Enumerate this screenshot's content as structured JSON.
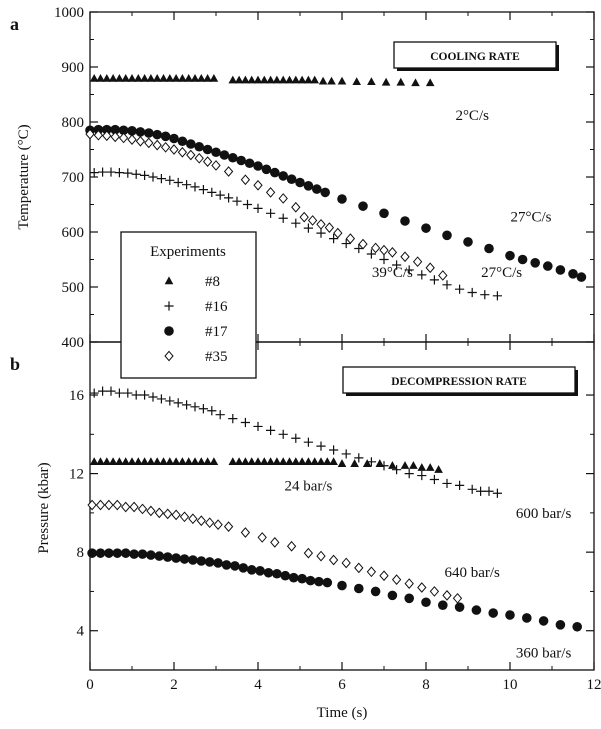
{
  "panels": {
    "a": {
      "letter": "a",
      "box_title": "COOLING RATE"
    },
    "b": {
      "letter": "b",
      "box_title": "DECOMPRESSION RATE"
    }
  },
  "legend": {
    "title": "Experiments",
    "entries": [
      {
        "label": "#8",
        "marker": "triangle"
      },
      {
        "label": "#16",
        "marker": "plus"
      },
      {
        "label": "#17",
        "marker": "filled-circle"
      },
      {
        "label": "#35",
        "marker": "open-diamond"
      }
    ]
  },
  "chart_data": [
    {
      "type": "scatter",
      "panel": "a",
      "title": "",
      "xlabel": "Time (s)",
      "ylabel": "Temperature (°C)",
      "xlim": [
        0,
        12
      ],
      "ylim": [
        400,
        1000
      ],
      "xticks": [
        0,
        2,
        4,
        6,
        8,
        10,
        12
      ],
      "yticks": [
        400,
        500,
        600,
        700,
        800,
        900,
        1000
      ],
      "legend_position": "left-center",
      "annotations": [
        {
          "text": "2°C/s",
          "x": 9.1,
          "y": 813
        },
        {
          "text": "27°C/s",
          "x": 10.5,
          "y": 628
        },
        {
          "text": "39°C/s",
          "x": 7.2,
          "y": 527
        },
        {
          "text": "27°C/s",
          "x": 9.8,
          "y": 527
        }
      ],
      "series": [
        {
          "name": "#8",
          "marker": "triangle",
          "x": [
            0.1,
            0.25,
            0.4,
            0.55,
            0.7,
            0.85,
            1.0,
            1.15,
            1.3,
            1.45,
            1.6,
            1.75,
            1.9,
            2.05,
            2.2,
            2.35,
            2.5,
            2.65,
            2.8,
            2.95,
            3.4,
            3.55,
            3.7,
            3.85,
            4.0,
            4.15,
            4.3,
            4.45,
            4.6,
            4.75,
            4.9,
            5.05,
            5.2,
            5.35,
            5.55,
            5.75,
            6.0,
            6.35,
            6.7,
            7.05,
            7.4,
            7.75,
            8.1
          ],
          "y": [
            879,
            879,
            879,
            879,
            879,
            879,
            879,
            879,
            879,
            879,
            879,
            879,
            879,
            879,
            879,
            879,
            879,
            879,
            879,
            879,
            876,
            876,
            876,
            876,
            876,
            876,
            876,
            876,
            876,
            876,
            876,
            876,
            876,
            876,
            874,
            874,
            874,
            873,
            873,
            872,
            872,
            871,
            871
          ]
        },
        {
          "name": "#16",
          "marker": "plus",
          "x": [
            0.1,
            0.3,
            0.5,
            0.7,
            0.9,
            1.1,
            1.3,
            1.5,
            1.7,
            1.9,
            2.1,
            2.3,
            2.5,
            2.7,
            2.9,
            3.1,
            3.3,
            3.5,
            3.75,
            4.0,
            4.3,
            4.6,
            4.9,
            5.2,
            5.5,
            5.8,
            6.1,
            6.4,
            6.7,
            7.0,
            7.3,
            7.6,
            7.9,
            8.2,
            8.5,
            8.8,
            9.1,
            9.4,
            9.7
          ],
          "y": [
            708,
            709,
            709,
            708,
            707,
            705,
            703,
            700,
            697,
            694,
            690,
            686,
            682,
            677,
            672,
            667,
            662,
            656,
            650,
            643,
            634,
            625,
            616,
            607,
            598,
            588,
            579,
            570,
            560,
            550,
            540,
            531,
            522,
            513,
            504,
            496,
            490,
            486,
            484
          ]
        },
        {
          "name": "#17",
          "marker": "filled-circle",
          "x": [
            0.0,
            0.2,
            0.4,
            0.6,
            0.8,
            1.0,
            1.2,
            1.4,
            1.6,
            1.8,
            2.0,
            2.2,
            2.4,
            2.6,
            2.8,
            3.0,
            3.2,
            3.4,
            3.6,
            3.8,
            4.0,
            4.2,
            4.4,
            4.6,
            4.8,
            5.0,
            5.2,
            5.4,
            5.6,
            6.0,
            6.5,
            7.0,
            7.5,
            8.0,
            8.5,
            9.0,
            9.5,
            10.0,
            10.3,
            10.6,
            10.9,
            11.2,
            11.5,
            11.7
          ],
          "y": [
            785,
            786,
            786,
            786,
            785,
            784,
            782,
            780,
            777,
            774,
            770,
            765,
            760,
            755,
            750,
            745,
            740,
            735,
            730,
            725,
            720,
            714,
            708,
            702,
            696,
            690,
            684,
            678,
            672,
            660,
            647,
            634,
            620,
            607,
            594,
            582,
            570,
            557,
            550,
            544,
            538,
            531,
            524,
            518
          ]
        },
        {
          "name": "#35",
          "marker": "open-diamond",
          "x": [
            0.0,
            0.2,
            0.4,
            0.6,
            0.8,
            1.0,
            1.2,
            1.4,
            1.6,
            1.8,
            2.0,
            2.2,
            2.4,
            2.6,
            2.8,
            3.0,
            3.3,
            3.7,
            4.0,
            4.3,
            4.6,
            4.9,
            5.1,
            5.3,
            5.5,
            5.7,
            5.9,
            6.2,
            6.5,
            6.8,
            7.0,
            7.2,
            7.5,
            7.8,
            8.1,
            8.4
          ],
          "y": [
            778,
            776,
            775,
            773,
            771,
            768,
            765,
            762,
            758,
            754,
            750,
            745,
            740,
            734,
            728,
            721,
            710,
            695,
            685,
            672,
            661,
            645,
            627,
            621,
            614,
            608,
            598,
            588,
            578,
            571,
            567,
            563,
            555,
            546,
            535,
            521
          ]
        }
      ]
    },
    {
      "type": "scatter",
      "panel": "b",
      "title": "",
      "xlabel": "Time (s)",
      "ylabel": "Pressure (kbar)",
      "xlim": [
        0,
        12
      ],
      "ylim": [
        2,
        18.7
      ],
      "xticks": [
        0,
        2,
        4,
        6,
        8,
        10,
        12
      ],
      "yticks": [
        4,
        8,
        12,
        16
      ],
      "annotations": [
        {
          "text": "24 bar/s",
          "x": 5.2,
          "y": 11.4
        },
        {
          "text": "600 bar/s",
          "x": 10.8,
          "y": 10.0
        },
        {
          "text": "640 bar/s",
          "x": 9.1,
          "y": 7.0
        },
        {
          "text": "360 bar/s",
          "x": 10.8,
          "y": 2.9
        }
      ],
      "series": [
        {
          "name": "#8",
          "marker": "triangle",
          "x": [
            0.1,
            0.25,
            0.4,
            0.55,
            0.7,
            0.85,
            1.0,
            1.15,
            1.3,
            1.45,
            1.6,
            1.75,
            1.9,
            2.05,
            2.2,
            2.35,
            2.5,
            2.65,
            2.8,
            2.95,
            3.4,
            3.55,
            3.7,
            3.85,
            4.0,
            4.15,
            4.3,
            4.45,
            4.6,
            4.75,
            4.9,
            5.05,
            5.2,
            5.35,
            5.5,
            5.65,
            5.8,
            6.0,
            6.3,
            6.6,
            6.9,
            7.2,
            7.5,
            7.7,
            7.9,
            8.1,
            8.3
          ],
          "y": [
            12.6,
            12.6,
            12.6,
            12.6,
            12.6,
            12.6,
            12.6,
            12.6,
            12.6,
            12.6,
            12.6,
            12.6,
            12.6,
            12.6,
            12.6,
            12.6,
            12.6,
            12.6,
            12.6,
            12.6,
            12.6,
            12.6,
            12.6,
            12.6,
            12.6,
            12.6,
            12.6,
            12.6,
            12.6,
            12.6,
            12.6,
            12.6,
            12.6,
            12.6,
            12.6,
            12.6,
            12.6,
            12.5,
            12.5,
            12.5,
            12.5,
            12.4,
            12.4,
            12.4,
            12.3,
            12.3,
            12.2
          ]
        },
        {
          "name": "#16",
          "marker": "plus",
          "x": [
            0.1,
            0.3,
            0.5,
            0.7,
            0.9,
            1.1,
            1.3,
            1.5,
            1.7,
            1.9,
            2.1,
            2.3,
            2.5,
            2.7,
            2.9,
            3.1,
            3.4,
            3.7,
            4.0,
            4.3,
            4.6,
            4.9,
            5.2,
            5.5,
            5.8,
            6.1,
            6.4,
            6.7,
            7.0,
            7.3,
            7.6,
            7.9,
            8.2,
            8.5,
            8.8,
            9.1,
            9.3,
            9.5,
            9.7
          ],
          "y": [
            16.1,
            16.2,
            16.2,
            16.1,
            16.1,
            16.0,
            16.0,
            15.9,
            15.8,
            15.7,
            15.6,
            15.5,
            15.4,
            15.3,
            15.2,
            15.0,
            14.8,
            14.6,
            14.4,
            14.2,
            14.0,
            13.8,
            13.6,
            13.4,
            13.2,
            13.0,
            12.8,
            12.6,
            12.4,
            12.2,
            12.0,
            11.9,
            11.7,
            11.5,
            11.4,
            11.2,
            11.1,
            11.1,
            11.0
          ]
        },
        {
          "name": "#17",
          "marker": "filled-circle",
          "x": [
            0.05,
            0.25,
            0.45,
            0.65,
            0.85,
            1.05,
            1.25,
            1.45,
            1.65,
            1.85,
            2.05,
            2.25,
            2.45,
            2.65,
            2.85,
            3.05,
            3.25,
            3.45,
            3.65,
            3.85,
            4.05,
            4.25,
            4.45,
            4.65,
            4.85,
            5.05,
            5.25,
            5.45,
            5.65,
            6.0,
            6.4,
            6.8,
            7.2,
            7.6,
            8.0,
            8.4,
            8.8,
            9.2,
            9.6,
            10.0,
            10.4,
            10.8,
            11.2,
            11.6
          ],
          "y": [
            7.95,
            7.95,
            7.95,
            7.95,
            7.95,
            7.9,
            7.9,
            7.85,
            7.8,
            7.75,
            7.7,
            7.65,
            7.6,
            7.55,
            7.5,
            7.45,
            7.35,
            7.3,
            7.2,
            7.1,
            7.05,
            6.95,
            6.9,
            6.8,
            6.7,
            6.65,
            6.55,
            6.5,
            6.45,
            6.3,
            6.15,
            6.0,
            5.8,
            5.65,
            5.45,
            5.3,
            5.2,
            5.05,
            4.9,
            4.8,
            4.65,
            4.5,
            4.3,
            4.2
          ]
        },
        {
          "name": "#35",
          "marker": "open-diamond",
          "x": [
            0.05,
            0.25,
            0.45,
            0.65,
            0.85,
            1.05,
            1.25,
            1.45,
            1.65,
            1.85,
            2.05,
            2.25,
            2.45,
            2.65,
            2.85,
            3.05,
            3.3,
            3.7,
            4.1,
            4.4,
            4.8,
            5.2,
            5.5,
            5.8,
            6.1,
            6.4,
            6.7,
            7.0,
            7.3,
            7.6,
            7.9,
            8.2,
            8.5,
            8.75
          ],
          "y": [
            10.4,
            10.4,
            10.4,
            10.4,
            10.3,
            10.3,
            10.2,
            10.1,
            10.0,
            9.95,
            9.9,
            9.8,
            9.7,
            9.6,
            9.5,
            9.4,
            9.3,
            9.0,
            8.75,
            8.5,
            8.3,
            7.95,
            7.8,
            7.6,
            7.45,
            7.2,
            7.0,
            6.8,
            6.6,
            6.4,
            6.2,
            6.0,
            5.8,
            5.65
          ]
        }
      ]
    }
  ]
}
